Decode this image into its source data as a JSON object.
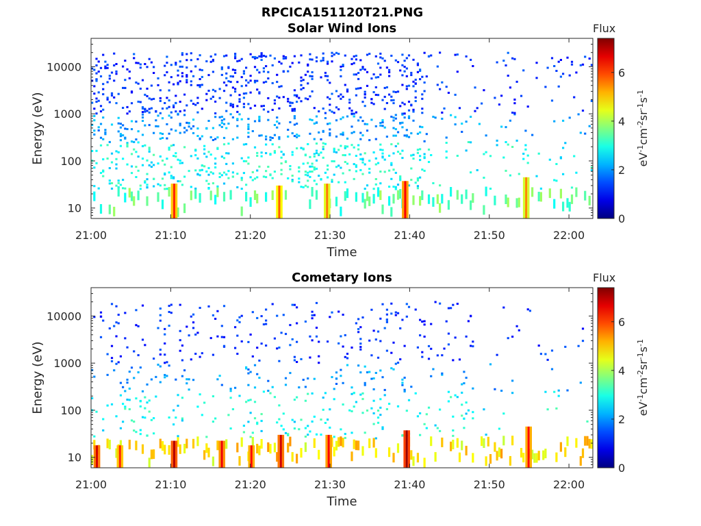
{
  "figure_title": "RPCICA151120T21.PNG",
  "colorbar": {
    "title": "Flux",
    "label_parts": [
      "eV",
      "-1",
      "cm",
      "-2",
      "sr",
      "-1",
      "s",
      "-1"
    ],
    "range": [
      0,
      7.4
    ],
    "ticks": [
      "0",
      "2",
      "4",
      "6"
    ],
    "colormap": "jet"
  },
  "chart_data": [
    {
      "type": "heatmap",
      "title": "Solar Wind Ions",
      "xlabel": "Time",
      "ylabel": "Energy (eV)",
      "x_ticks": [
        "21:00",
        "21:10",
        "21:20",
        "21:30",
        "21:40",
        "21:50",
        "22:00"
      ],
      "x_range": [
        "21:00",
        "22:03"
      ],
      "y_ticks": [
        "10",
        "100",
        "1000",
        "10000"
      ],
      "y_scale": "log",
      "y_range": [
        6,
        40000
      ],
      "grid": false,
      "hotspots": [
        {
          "time_min": 10.3,
          "energy_ev": 22,
          "flux": 6.2
        },
        {
          "time_min": 23.5,
          "energy_ev": 20,
          "flux": 5.8
        },
        {
          "time_min": 29.5,
          "energy_ev": 22,
          "flux": 5.6
        },
        {
          "time_min": 39.3,
          "energy_ev": 25,
          "flux": 6.5
        },
        {
          "time_min": 54.5,
          "energy_ev": 30,
          "flux": 5.5
        }
      ]
    },
    {
      "type": "heatmap",
      "title": "Cometary Ions",
      "xlabel": "Time",
      "ylabel": "Energy (eV)",
      "x_ticks": [
        "21:00",
        "21:10",
        "21:20",
        "21:30",
        "21:40",
        "21:50",
        "22:00"
      ],
      "x_range": [
        "21:00",
        "22:03"
      ],
      "y_ticks": [
        "10",
        "100",
        "1000",
        "10000"
      ],
      "y_scale": "log",
      "y_range": [
        6,
        40000
      ],
      "grid": false,
      "hotspots": [
        {
          "time_min": 0.6,
          "energy_ev": 12,
          "flux": 6.8
        },
        {
          "time_min": 3.5,
          "energy_ev": 12,
          "flux": 6.2
        },
        {
          "time_min": 10.3,
          "energy_ev": 15,
          "flux": 7.0
        },
        {
          "time_min": 16.3,
          "energy_ev": 15,
          "flux": 6.6
        },
        {
          "time_min": 20.0,
          "energy_ev": 12,
          "flux": 6.4
        },
        {
          "time_min": 23.7,
          "energy_ev": 20,
          "flux": 6.8
        },
        {
          "time_min": 29.7,
          "energy_ev": 20,
          "flux": 6.5
        },
        {
          "time_min": 39.5,
          "energy_ev": 25,
          "flux": 7.2
        },
        {
          "time_min": 54.8,
          "energy_ev": 30,
          "flux": 6.4
        }
      ]
    }
  ]
}
